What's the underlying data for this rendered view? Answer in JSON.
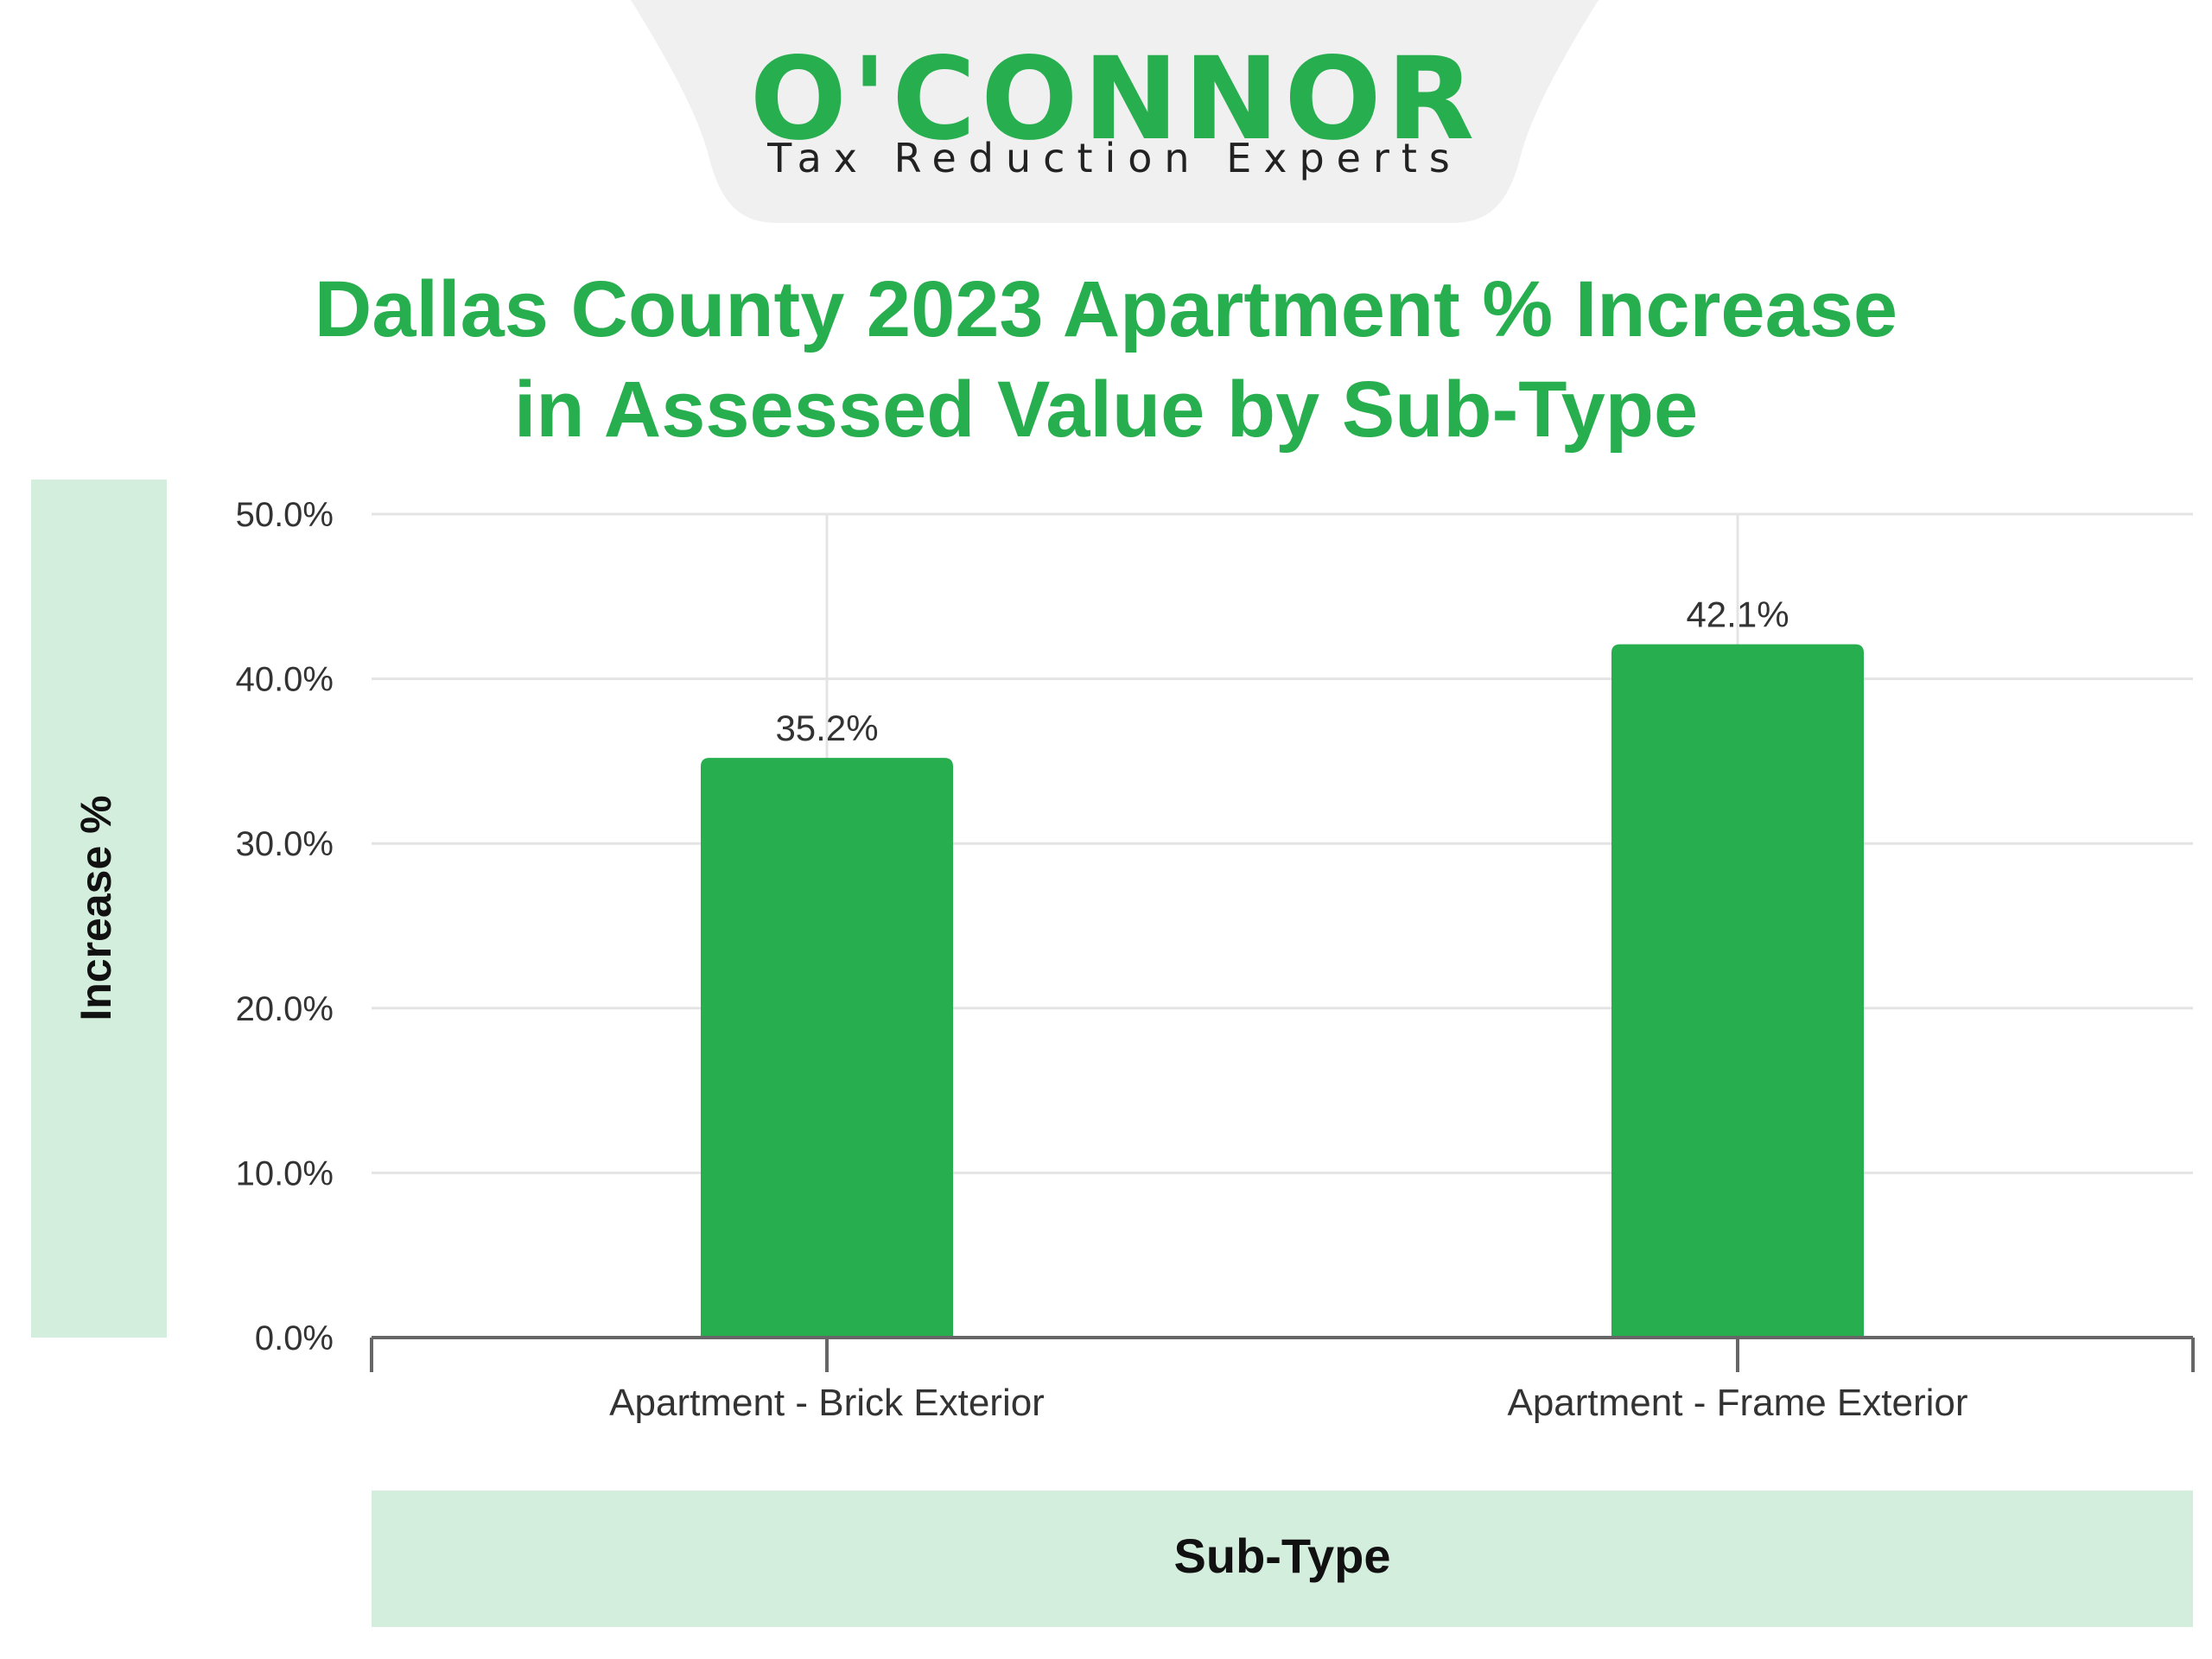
{
  "logo": {
    "brand": "O'CONNOR",
    "tagline": "Tax Reduction Experts"
  },
  "colors": {
    "brand_green": "#27ae4f",
    "axis_band": "#d4eedd",
    "grid": "#e4e4e4",
    "text_dark": "#333333"
  },
  "chart_data": {
    "type": "bar",
    "title": "Dallas County 2023 Apartment % Increase in Assessed Value by Sub-Type",
    "title_lines": [
      "Dallas County 2023 Apartment % Increase",
      "in Assessed Value by Sub-Type"
    ],
    "categories": [
      "Apartment - Brick Exterior",
      "Apartment - Frame Exterior"
    ],
    "values": [
      35.2,
      42.1
    ],
    "value_labels": [
      "35.2%",
      "42.1%"
    ],
    "xlabel": "Sub-Type",
    "ylabel": "Increase %",
    "ylim": [
      0,
      50
    ],
    "yticks": [
      0,
      10,
      20,
      30,
      40,
      50
    ],
    "ytick_labels": [
      "0.0%",
      "10.0%",
      "20.0%",
      "30.0%",
      "40.0%",
      "50.0%"
    ],
    "grid": true,
    "legend": "none"
  }
}
